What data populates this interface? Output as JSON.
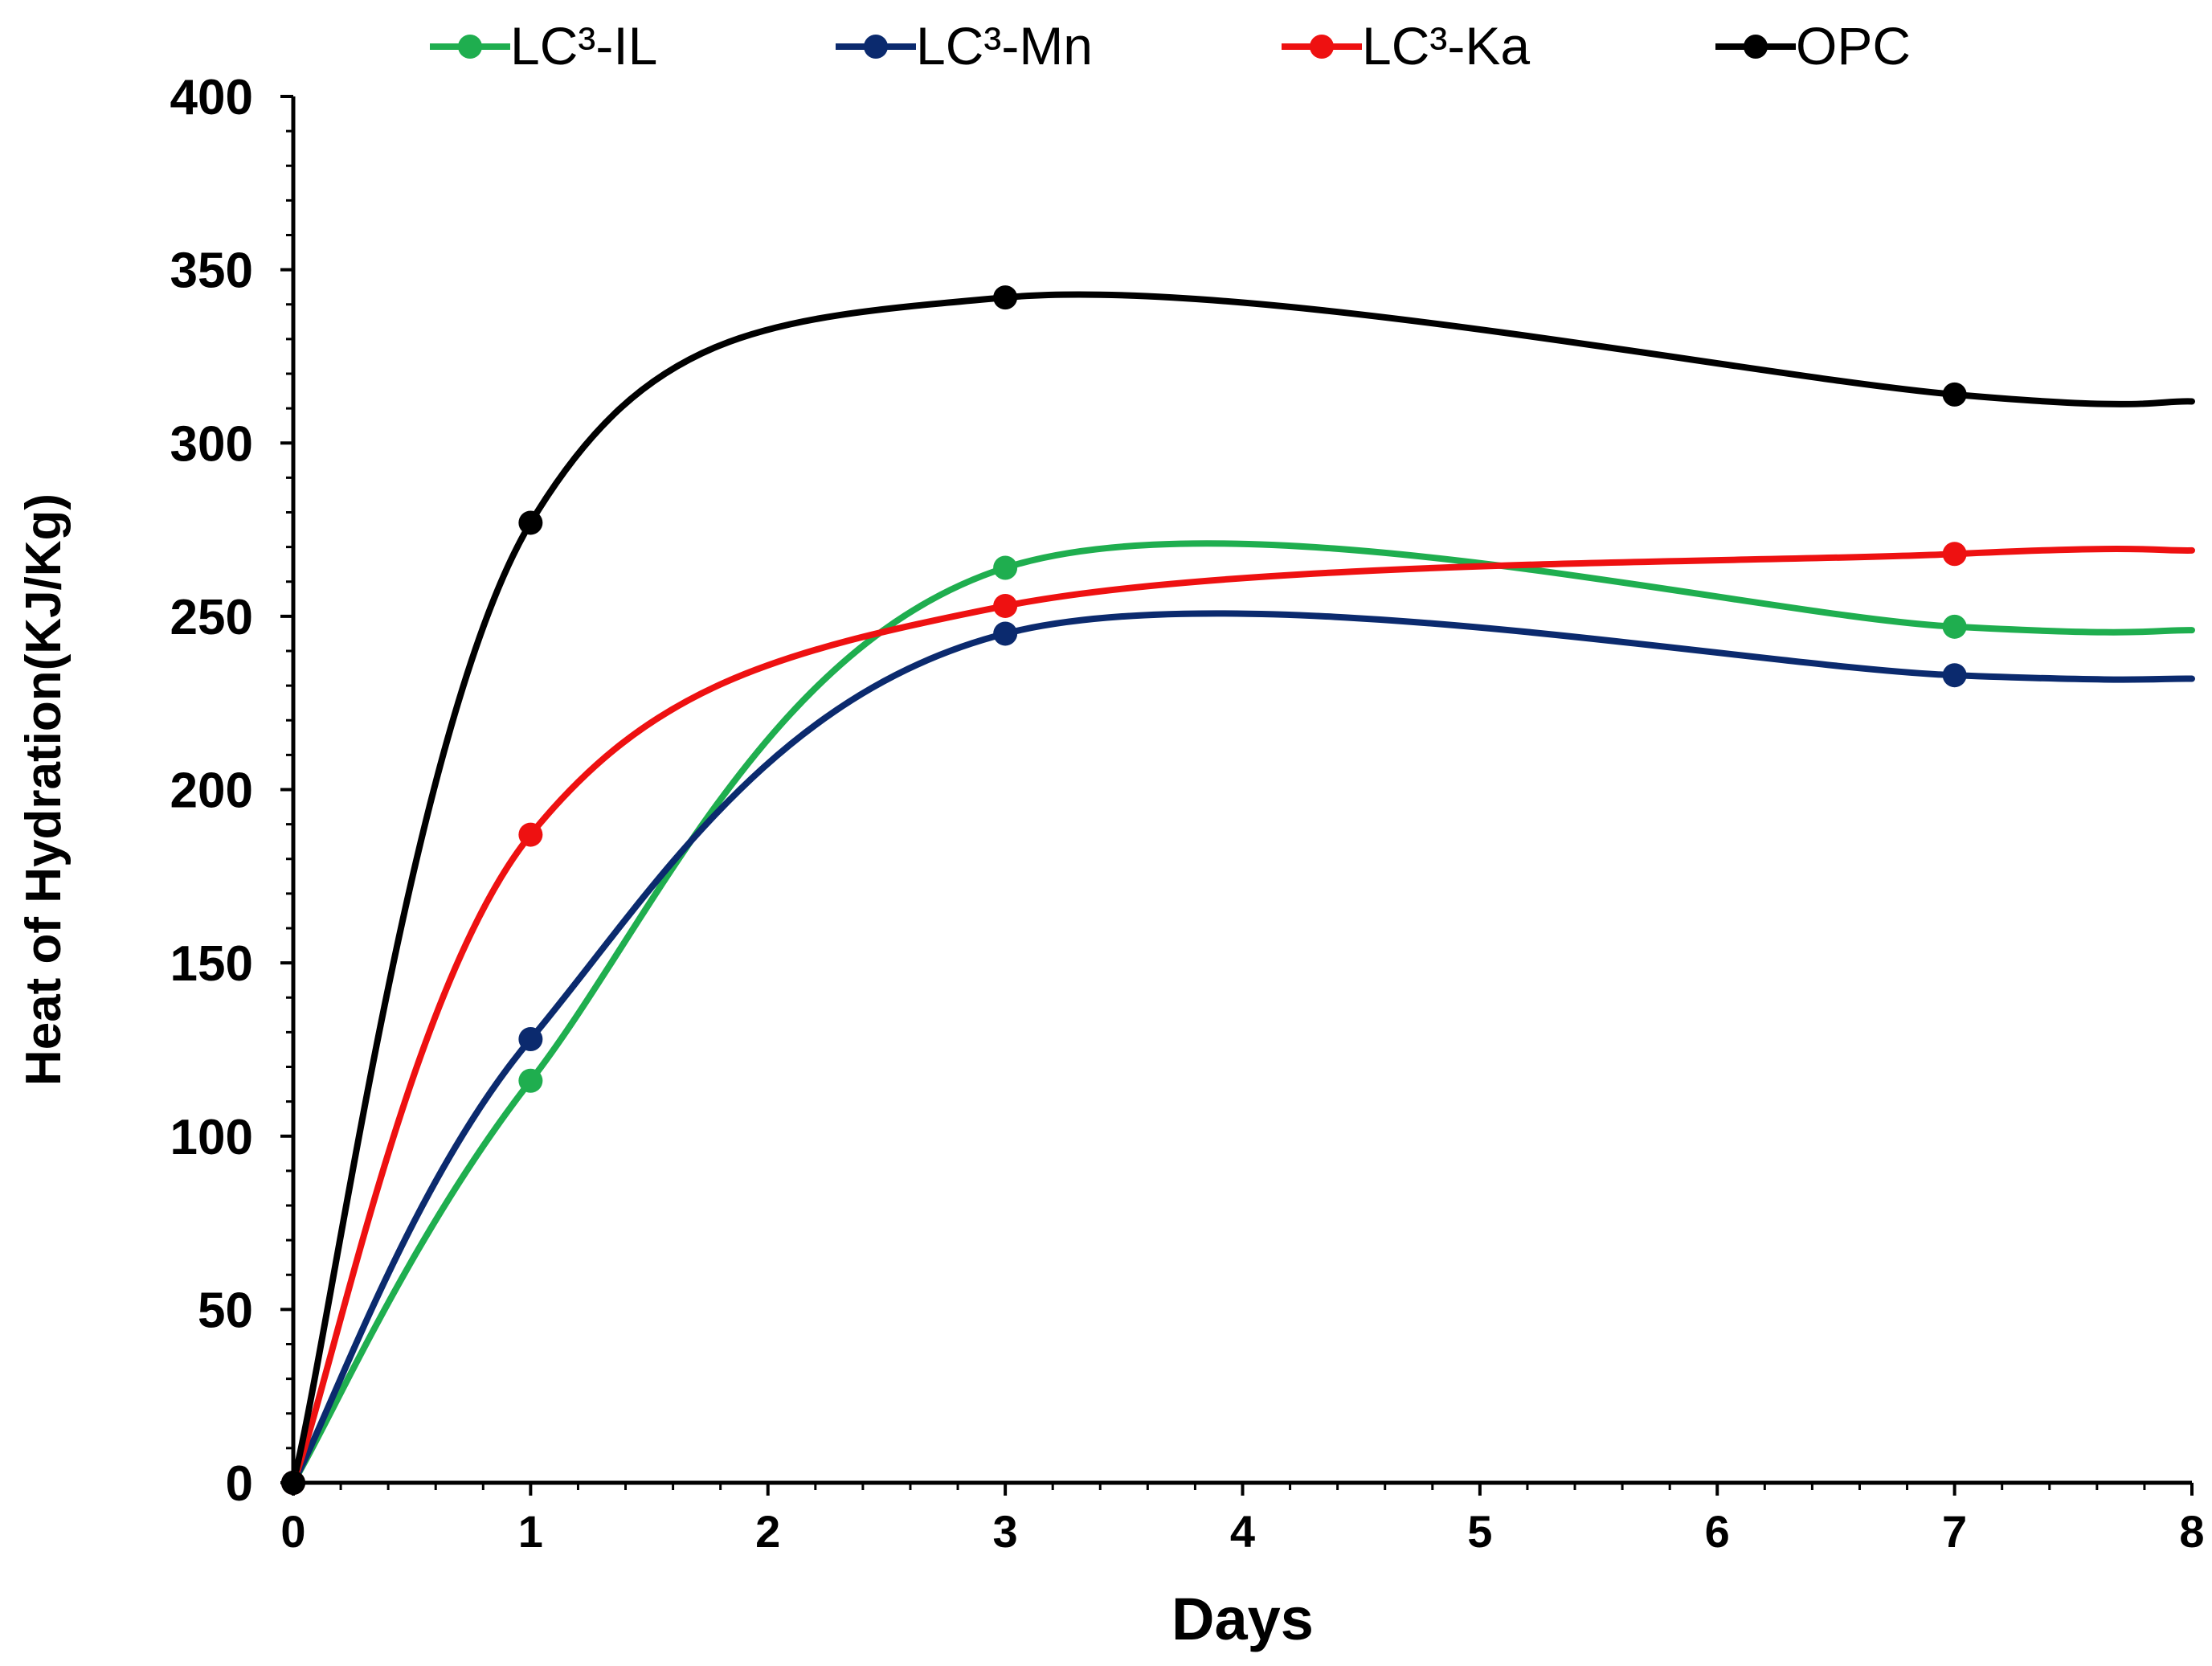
{
  "chart_data": {
    "type": "line",
    "title": "",
    "xlabel": "Days",
    "ylabel": "Heat of Hydration(KJ/Kg)",
    "xlim": [
      0,
      8
    ],
    "ylim": [
      0,
      400
    ],
    "x_ticks": [
      0,
      1,
      2,
      3,
      4,
      5,
      6,
      7,
      8
    ],
    "y_ticks": [
      0,
      50,
      100,
      150,
      200,
      250,
      300,
      350,
      400
    ],
    "grid": false,
    "legend_position": "top",
    "series": [
      {
        "name": "LC³-IL",
        "color": "#1fae4f",
        "points": [
          [
            0,
            0
          ],
          [
            1,
            116
          ],
          [
            3,
            264
          ],
          [
            7,
            247
          ]
        ],
        "curve_end": [
          8,
          246
        ]
      },
      {
        "name": "LC³-Mn",
        "color": "#0b2a6e",
        "points": [
          [
            0,
            0
          ],
          [
            1,
            128
          ],
          [
            3,
            245
          ],
          [
            7,
            233
          ]
        ],
        "curve_end": [
          8,
          232
        ]
      },
      {
        "name": "LC³-Ka",
        "color": "#ee1111",
        "points": [
          [
            0,
            0
          ],
          [
            1,
            187
          ],
          [
            3,
            253
          ],
          [
            7,
            268
          ]
        ],
        "curve_end": [
          8,
          269
        ]
      },
      {
        "name": "OPC",
        "color": "#000000",
        "points": [
          [
            0,
            0
          ],
          [
            1,
            277
          ],
          [
            3,
            342
          ],
          [
            7,
            314
          ]
        ],
        "curve_end": [
          8,
          312
        ]
      }
    ]
  }
}
